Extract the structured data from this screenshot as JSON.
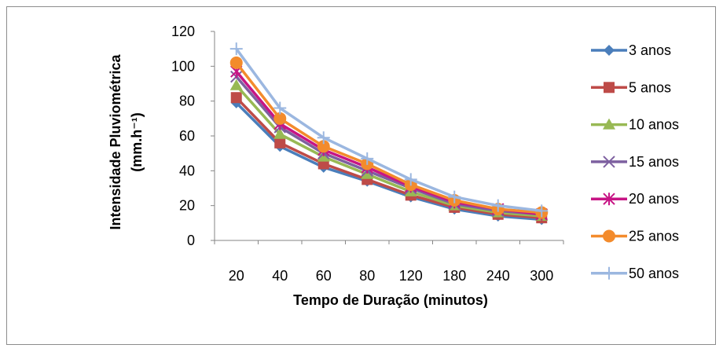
{
  "chart_data": {
    "type": "line",
    "categories": [
      "20",
      "40",
      "60",
      "80",
      "120",
      "180",
      "240",
      "300"
    ],
    "xlabel": "Tempo de Duração (minutos)",
    "ylabel": "Intensidade Pluviométrica",
    "ylabel_unit": "(mm.h⁻¹)",
    "ylim": [
      0,
      120
    ],
    "yticks": [
      0,
      20,
      40,
      60,
      80,
      100,
      120
    ],
    "grid": false,
    "legend_position": "right",
    "series": [
      {
        "name": "3 anos",
        "color": "#4a7ebb",
        "marker": "diamond",
        "values": [
          79,
          54,
          42,
          34,
          25,
          18,
          14,
          12
        ]
      },
      {
        "name": "5 anos",
        "color": "#be4b48",
        "marker": "square",
        "values": [
          82,
          56,
          44,
          35,
          26,
          19,
          15,
          13
        ]
      },
      {
        "name": "10 anos",
        "color": "#98b954",
        "marker": "triangle",
        "values": [
          89,
          61,
          48,
          38,
          28,
          20,
          16,
          14
        ]
      },
      {
        "name": "15 anos",
        "color": "#7d60a0",
        "marker": "x",
        "values": [
          94,
          65,
          50,
          40,
          30,
          21,
          17,
          15
        ]
      },
      {
        "name": "20 anos",
        "color": "#c71585",
        "marker": "asterisk",
        "values": [
          97,
          67,
          52,
          42,
          31,
          22,
          18,
          15
        ]
      },
      {
        "name": "25 anos",
        "color": "#f38b2c",
        "marker": "circle",
        "values": [
          102,
          70,
          54,
          44,
          32,
          23,
          18,
          16
        ]
      },
      {
        "name": "50 anos",
        "color": "#9bb7e0",
        "marker": "plus",
        "values": [
          110,
          76,
          59,
          47,
          35,
          25,
          20,
          17
        ]
      }
    ]
  }
}
